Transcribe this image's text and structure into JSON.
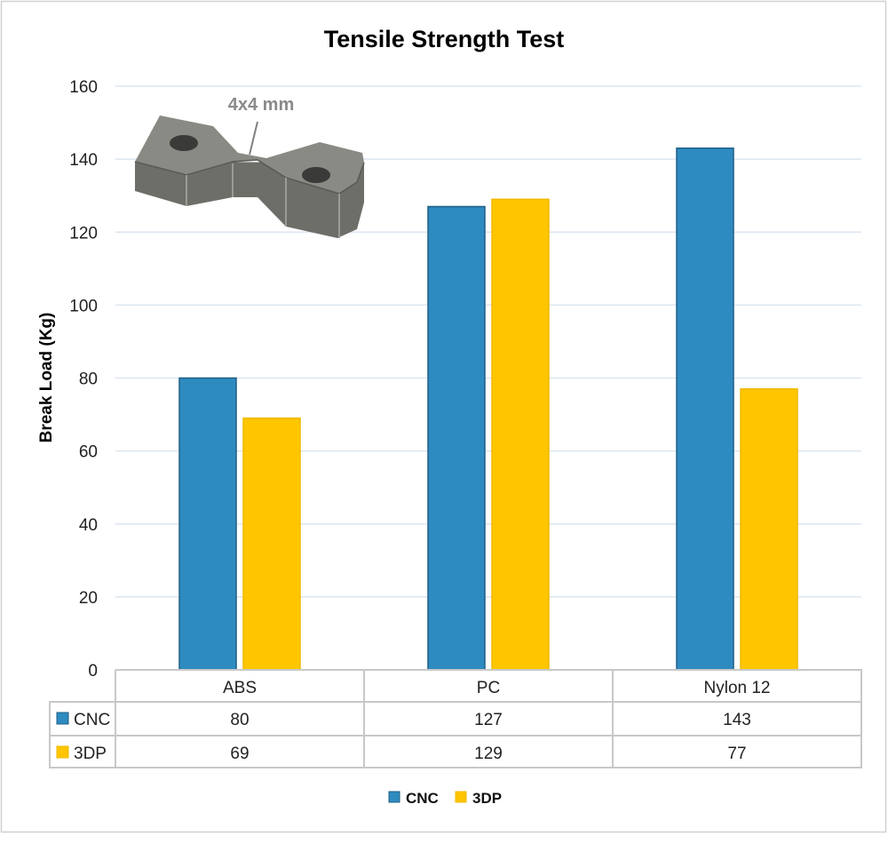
{
  "chart_data": {
    "type": "bar",
    "title": "Tensile Strength Test",
    "xlabel": "",
    "ylabel": "Break Load (Kg)",
    "ylim": [
      0,
      160
    ],
    "yticks": [
      0,
      20,
      40,
      60,
      80,
      100,
      120,
      140,
      160
    ],
    "grid": true,
    "categories": [
      "ABS",
      "PC",
      "Nylon 12"
    ],
    "series": [
      {
        "name": "CNC",
        "values": [
          80,
          127,
          143
        ],
        "color": "#2E8BC0"
      },
      {
        "name": "3DP",
        "values": [
          69,
          129,
          77
        ],
        "color": "#FFC600"
      }
    ],
    "data_table": true,
    "legend": "bottom",
    "annotation": "4x4 mm"
  }
}
